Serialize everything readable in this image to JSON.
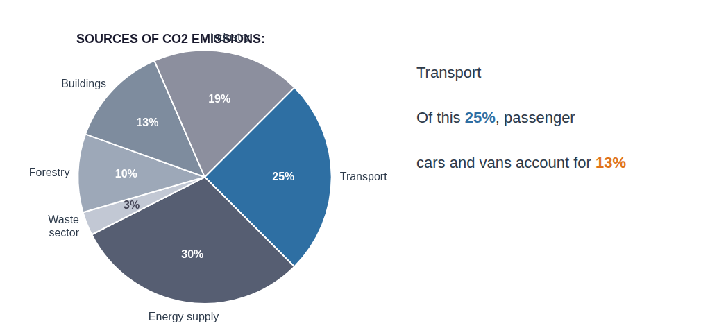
{
  "chart_data": {
    "type": "pie",
    "title": "SOURCES OF CO2 EMISSIONS:",
    "categories": [
      "Transport",
      "Energy supply",
      "Waste\nsector",
      "Forestry",
      "Buildings",
      "Industry"
    ],
    "values": [
      25,
      30,
      3,
      10,
      13,
      19
    ],
    "value_labels": [
      "25%",
      "30%",
      "3%",
      "10%",
      "13%",
      "19%"
    ],
    "colors": [
      "#2e6fa3",
      "#565e72",
      "#c2c8d4",
      "#9da8b8",
      "#7e8c9e",
      "#8c8f9e"
    ],
    "data_labels": true,
    "annotations": [
      {
        "text": [
          "Transport"
        ],
        "colors": [
          "#2d3a4a"
        ]
      },
      {
        "text": [
          "Of this ",
          "25%",
          ", passenger"
        ],
        "colors": [
          "#2d3a4a",
          "#2e6fa3",
          "#2d3a4a"
        ]
      },
      {
        "text": [
          "cars and vans account for ",
          "13",
          "%"
        ],
        "colors": [
          "#2d3a4a",
          "#e07318",
          "#e07318"
        ]
      }
    ]
  }
}
